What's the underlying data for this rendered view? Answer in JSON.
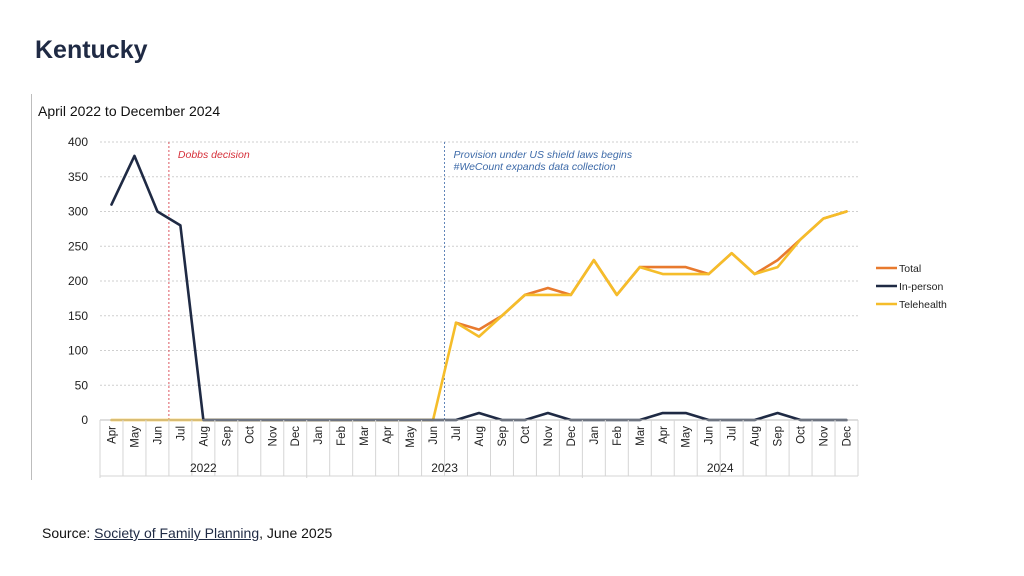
{
  "page": {
    "title": "Kentucky",
    "source_prefix": "Source: ",
    "source_link": "Society of Family Planning",
    "source_suffix": ", June 2025"
  },
  "chart_data": {
    "type": "line",
    "title": "April 2022 to December 2024",
    "xlabel": "",
    "ylabel": "",
    "ylim": [
      0,
      400
    ],
    "yticks": [
      0,
      50,
      100,
      150,
      200,
      250,
      300,
      350,
      400
    ],
    "grid": true,
    "legend_position": "right",
    "categories": [
      "Apr",
      "May",
      "Jun",
      "Jul",
      "Aug",
      "Sep",
      "Oct",
      "Nov",
      "Dec",
      "Jan",
      "Feb",
      "Mar",
      "Apr",
      "May",
      "Jun",
      "Jul",
      "Aug",
      "Sep",
      "Oct",
      "Nov",
      "Dec",
      "Jan",
      "Feb",
      "Mar",
      "Apr",
      "May",
      "Jun",
      "Jul",
      "Aug",
      "Sep",
      "Oct",
      "Nov",
      "Dec"
    ],
    "year_groups": [
      {
        "label": "2022",
        "start": 0,
        "end": 8
      },
      {
        "label": "2023",
        "start": 9,
        "end": 20
      },
      {
        "label": "2024",
        "start": 21,
        "end": 32
      }
    ],
    "series": [
      {
        "name": "Total",
        "color": "#e87a2e",
        "values": [
          null,
          null,
          null,
          null,
          null,
          null,
          null,
          null,
          null,
          null,
          null,
          null,
          null,
          null,
          null,
          140,
          130,
          150,
          180,
          190,
          180,
          230,
          180,
          220,
          220,
          220,
          210,
          240,
          210,
          230,
          260,
          290,
          300
        ]
      },
      {
        "name": "In-person",
        "color": "#1f2a44",
        "values": [
          310,
          380,
          300,
          280,
          0,
          0,
          0,
          0,
          0,
          0,
          0,
          0,
          0,
          0,
          0,
          0,
          10,
          0,
          0,
          10,
          0,
          0,
          0,
          0,
          10,
          10,
          0,
          0,
          0,
          10,
          0,
          0,
          0
        ]
      },
      {
        "name": "Telehealth",
        "color": "#f5bd2a",
        "values": [
          0,
          0,
          0,
          0,
          0,
          0,
          0,
          0,
          0,
          0,
          0,
          0,
          0,
          0,
          0,
          140,
          120,
          150,
          180,
          180,
          180,
          230,
          180,
          220,
          210,
          210,
          210,
          240,
          210,
          220,
          260,
          290,
          300
        ]
      }
    ],
    "annotations": [
      {
        "index": 2.5,
        "lines": [
          "Dobbs decision"
        ],
        "color": "#d6303a"
      },
      {
        "index": 14.5,
        "lines": [
          "Provision under US shield laws begins",
          "#WeCount expands data collection"
        ],
        "color": "#3d6aa8"
      }
    ]
  }
}
